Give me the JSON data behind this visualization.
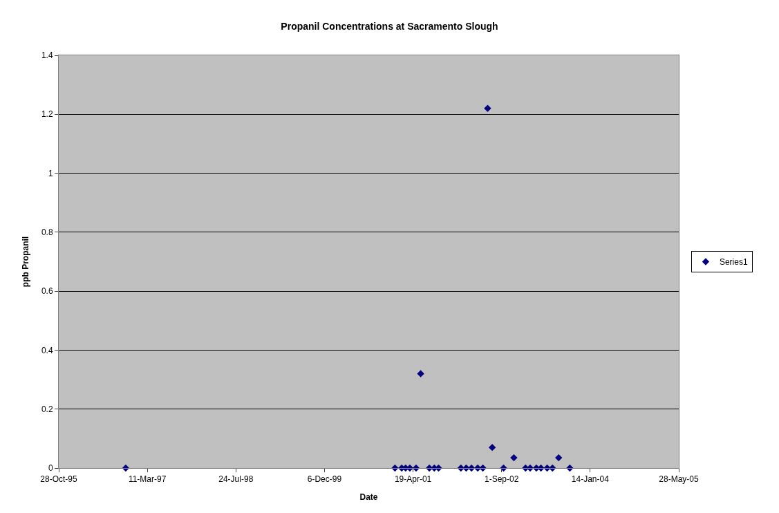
{
  "chart_data": {
    "type": "scatter",
    "title": "Propanil Concentrations at Sacramento Slough",
    "xlabel": "Date",
    "ylabel": "ppb Propanil",
    "x": [
      "1996-11-09",
      "2001-01-07",
      "2001-02-14",
      "2001-03-08",
      "2001-04-01",
      "2001-05-06",
      "2001-06-01",
      "2001-07-20",
      "2001-08-17",
      "2001-09-10",
      "2002-01-14",
      "2002-02-13",
      "2002-03-15",
      "2002-04-19",
      "2002-05-18",
      "2002-06-14",
      "2002-07-10",
      "2002-09-12",
      "2002-11-09",
      "2003-01-14",
      "2003-02-09",
      "2003-03-16",
      "2003-04-11",
      "2003-05-16",
      "2003-06-15",
      "2003-07-20",
      "2003-09-21"
    ],
    "series": [
      {
        "name": "Series1",
        "color": "#000080",
        "values": [
          0,
          0,
          0,
          0,
          0,
          0,
          0.32,
          0,
          0,
          0,
          0,
          0,
          0,
          0,
          0,
          1.22,
          0.07,
          0,
          0.035,
          0,
          0,
          0,
          0,
          0,
          0,
          0.035,
          0
        ]
      }
    ],
    "xlim": [
      "1995-10-28",
      "2005-05-28"
    ],
    "xticks": [
      {
        "value": "1995-10-28",
        "label": "28-Oct-95"
      },
      {
        "value": "1997-03-11",
        "label": "11-Mar-97"
      },
      {
        "value": "1998-07-24",
        "label": "24-Jul-98"
      },
      {
        "value": "1999-12-06",
        "label": "6-Dec-99"
      },
      {
        "value": "2001-04-19",
        "label": "19-Apr-01"
      },
      {
        "value": "2002-09-01",
        "label": "1-Sep-02"
      },
      {
        "value": "2004-01-14",
        "label": "14-Jan-04"
      },
      {
        "value": "2005-05-28",
        "label": "28-May-05"
      }
    ],
    "ylim": [
      0,
      1.4
    ],
    "yticks": [
      0,
      0.2,
      0.4,
      0.6,
      0.8,
      1,
      1.2,
      1.4
    ],
    "grid": "y",
    "legend": "right",
    "marker": "diamond"
  }
}
